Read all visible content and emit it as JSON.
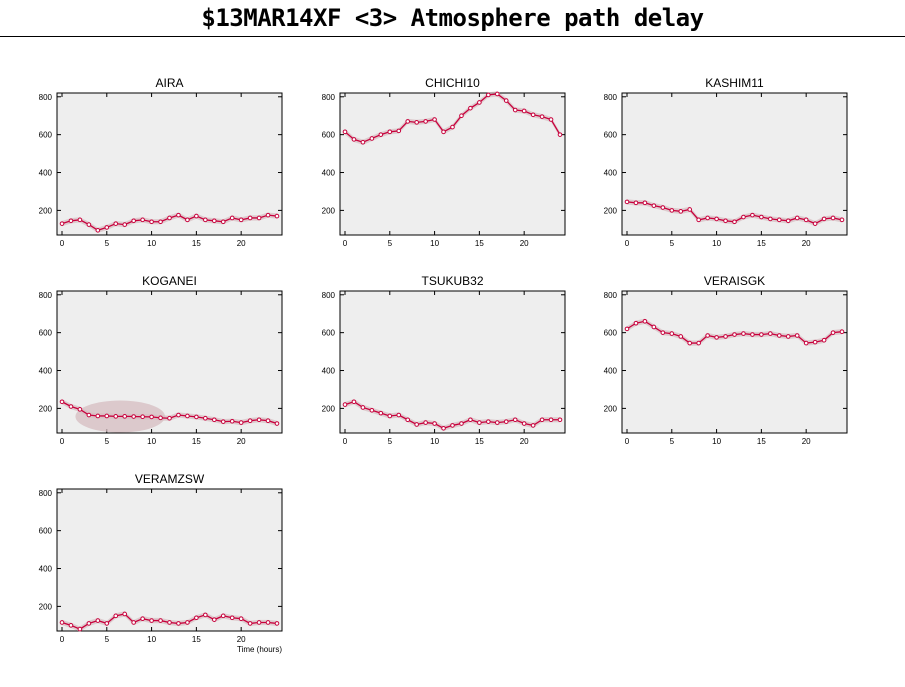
{
  "title": "$13MAR14XF <3>  Atmosphere path delay",
  "colors": {
    "panel_bg": "#eeeeee",
    "line": "#c8003c",
    "band": "#d6bcc0",
    "marker_fill": "#ffffff"
  },
  "chart_data": [
    {
      "type": "line",
      "title": "AIRA",
      "xlabel": "",
      "xlim": [
        0,
        24
      ],
      "ylim": [
        70,
        820
      ],
      "xticks": [
        "0",
        "5",
        "10",
        "15",
        "20"
      ],
      "yticks": [
        "200",
        "400",
        "600",
        "800"
      ],
      "grid": false,
      "x": [
        0,
        1,
        2,
        3,
        4,
        5,
        6,
        7,
        8,
        9,
        10,
        11,
        12,
        13,
        14,
        15,
        16,
        17,
        18,
        19,
        20,
        21,
        22,
        23,
        24
      ],
      "values": [
        130,
        145,
        150,
        125,
        95,
        110,
        130,
        125,
        145,
        150,
        140,
        140,
        160,
        175,
        150,
        170,
        150,
        145,
        140,
        160,
        150,
        160,
        160,
        175,
        170
      ]
    },
    {
      "type": "line",
      "title": "CHICHI10",
      "xlabel": "",
      "xlim": [
        0,
        24
      ],
      "ylim": [
        70,
        820
      ],
      "xticks": [
        "0",
        "5",
        "10",
        "15",
        "20"
      ],
      "yticks": [
        "200",
        "400",
        "600",
        "800"
      ],
      "grid": false,
      "x": [
        0,
        1,
        2,
        3,
        4,
        5,
        6,
        7,
        8,
        9,
        10,
        11,
        12,
        13,
        14,
        15,
        16,
        17,
        18,
        19,
        20,
        21,
        22,
        23,
        24
      ],
      "values": [
        615,
        575,
        560,
        580,
        600,
        615,
        620,
        670,
        665,
        670,
        680,
        615,
        640,
        700,
        740,
        770,
        810,
        815,
        780,
        730,
        725,
        705,
        695,
        680,
        600
      ]
    },
    {
      "type": "line",
      "title": "KASHIM11",
      "xlabel": "",
      "xlim": [
        0,
        24
      ],
      "ylim": [
        70,
        820
      ],
      "xticks": [
        "0",
        "5",
        "10",
        "15",
        "20"
      ],
      "yticks": [
        "200",
        "400",
        "600",
        "800"
      ],
      "grid": false,
      "x": [
        0,
        1,
        2,
        3,
        4,
        5,
        6,
        7,
        8,
        9,
        10,
        11,
        12,
        13,
        14,
        15,
        16,
        17,
        18,
        19,
        20,
        21,
        22,
        23,
        24
      ],
      "values": [
        245,
        240,
        240,
        225,
        215,
        200,
        195,
        205,
        150,
        160,
        155,
        145,
        140,
        165,
        175,
        165,
        155,
        150,
        145,
        160,
        150,
        130,
        155,
        160,
        150
      ]
    },
    {
      "type": "line",
      "title": "KOGANEI",
      "xlabel": "",
      "xlim": [
        0,
        24
      ],
      "ylim": [
        70,
        820
      ],
      "xticks": [
        "0",
        "5",
        "10",
        "15",
        "20"
      ],
      "yticks": [
        "200",
        "400",
        "600",
        "800"
      ],
      "grid": false,
      "x": [
        0,
        1,
        2,
        3,
        4,
        5,
        6,
        7,
        8,
        9,
        10,
        11,
        12,
        13,
        14,
        15,
        16,
        17,
        18,
        19,
        20,
        21,
        22,
        23,
        24
      ],
      "values": [
        235,
        210,
        195,
        165,
        160,
        160,
        158,
        158,
        157,
        156,
        155,
        150,
        148,
        165,
        160,
        155,
        148,
        140,
        130,
        132,
        125,
        135,
        140,
        135,
        120
      ]
    },
    {
      "type": "line",
      "title": "TSUKUB32",
      "xlabel": "",
      "xlim": [
        0,
        24
      ],
      "ylim": [
        70,
        820
      ],
      "xticks": [
        "0",
        "5",
        "10",
        "15",
        "20"
      ],
      "yticks": [
        "200",
        "400",
        "600",
        "800"
      ],
      "grid": false,
      "x": [
        0,
        1,
        2,
        3,
        4,
        5,
        6,
        7,
        8,
        9,
        10,
        11,
        12,
        13,
        14,
        15,
        16,
        17,
        18,
        19,
        20,
        21,
        22,
        23,
        24
      ],
      "values": [
        220,
        235,
        205,
        190,
        175,
        160,
        165,
        140,
        115,
        125,
        120,
        95,
        110,
        120,
        140,
        125,
        130,
        125,
        130,
        140,
        120,
        110,
        140,
        140,
        140
      ]
    },
    {
      "type": "line",
      "title": "VERAISGK",
      "xlabel": "",
      "xlim": [
        0,
        24
      ],
      "ylim": [
        70,
        820
      ],
      "xticks": [
        "0",
        "5",
        "10",
        "15",
        "20"
      ],
      "yticks": [
        "200",
        "400",
        "600",
        "800"
      ],
      "grid": false,
      "x": [
        0,
        1,
        2,
        3,
        4,
        5,
        6,
        7,
        8,
        9,
        10,
        11,
        12,
        13,
        14,
        15,
        16,
        17,
        18,
        19,
        20,
        21,
        22,
        23,
        24
      ],
      "values": [
        620,
        650,
        660,
        630,
        600,
        595,
        580,
        545,
        545,
        585,
        575,
        580,
        590,
        595,
        590,
        590,
        595,
        585,
        580,
        585,
        545,
        550,
        560,
        600,
        605
      ]
    },
    {
      "type": "line",
      "title": "VERAMZSW",
      "xlabel": "Time (hours)",
      "xlim": [
        0,
        24
      ],
      "ylim": [
        70,
        820
      ],
      "xticks": [
        "0",
        "5",
        "10",
        "15",
        "20"
      ],
      "yticks": [
        "200",
        "400",
        "600",
        "800"
      ],
      "grid": false,
      "x": [
        0,
        1,
        2,
        3,
        4,
        5,
        6,
        7,
        8,
        9,
        10,
        11,
        12,
        13,
        14,
        15,
        16,
        17,
        18,
        19,
        20,
        21,
        22,
        23,
        24
      ],
      "values": [
        115,
        100,
        80,
        110,
        125,
        110,
        150,
        160,
        115,
        135,
        125,
        125,
        115,
        110,
        115,
        140,
        155,
        130,
        150,
        140,
        135,
        110,
        115,
        115,
        110
      ]
    }
  ]
}
